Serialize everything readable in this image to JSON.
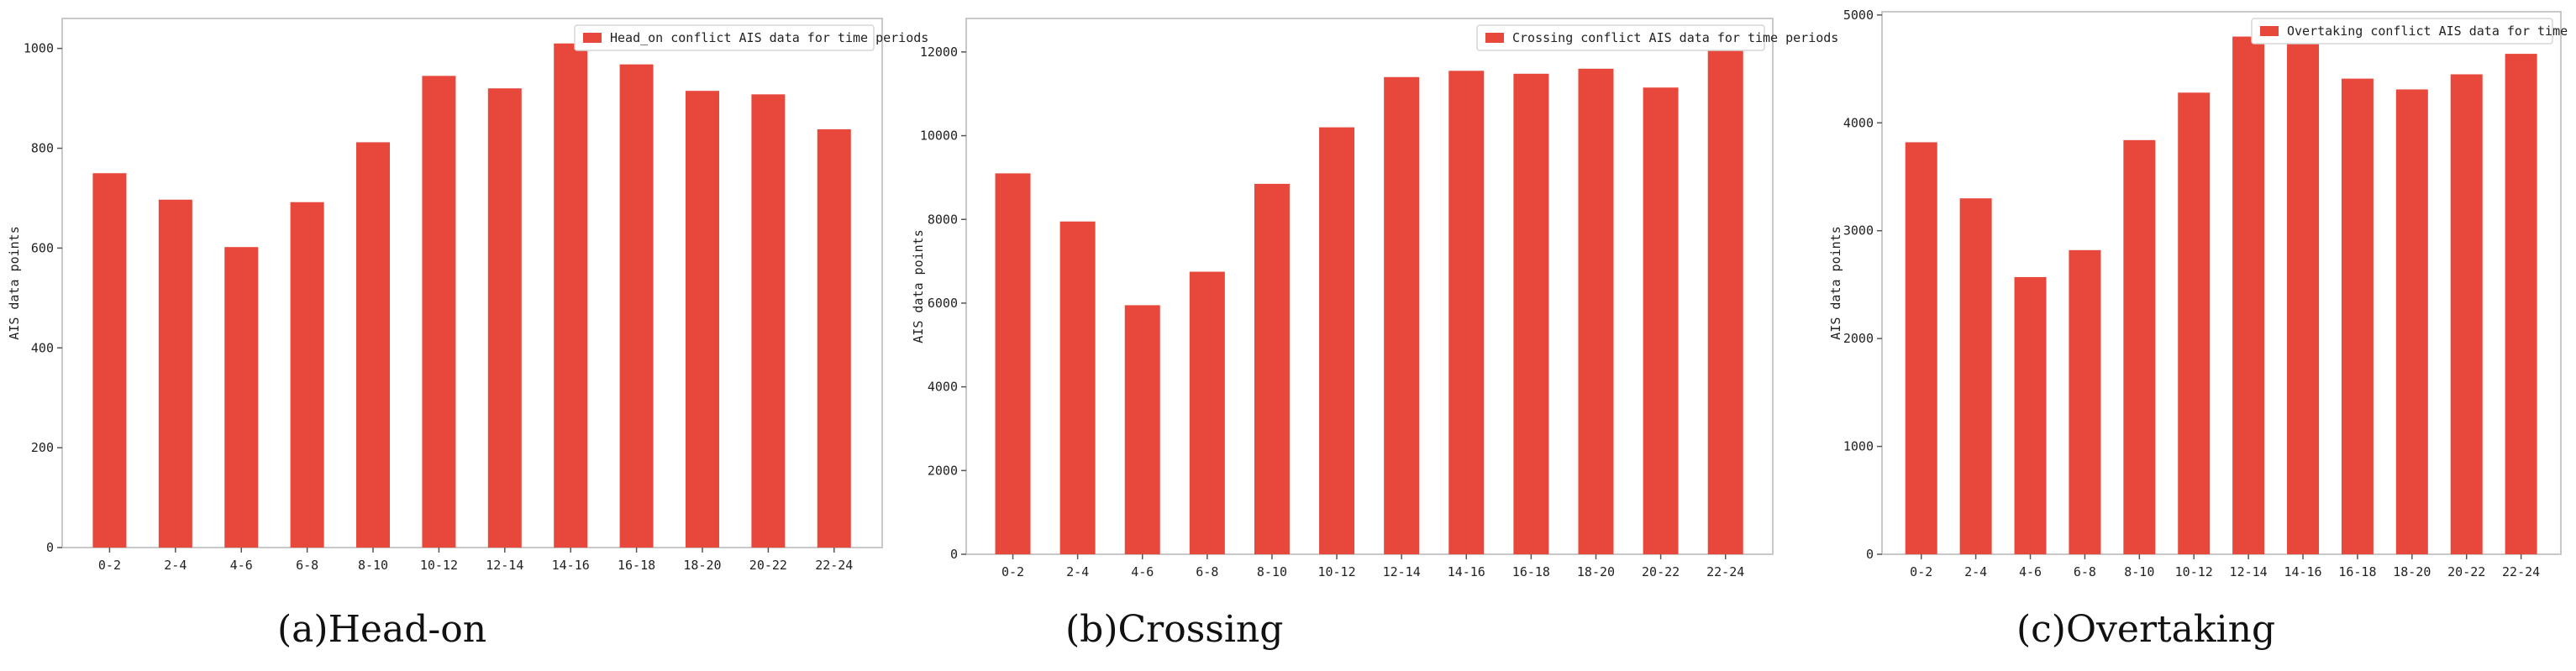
{
  "captions": [
    "(a)Head-on",
    "(b)Crossing",
    "(c)Overtaking"
  ],
  "colors": {
    "bar": "#e8483b",
    "axis": "#c8c8c8",
    "tick": "#555555"
  },
  "chart_data": [
    {
      "type": "bar",
      "title": "",
      "xlabel": "",
      "ylabel": "AIS data points",
      "legend": "Head_on conflict AIS data for time periods",
      "legend_position": "top-right",
      "grid": false,
      "categories": [
        "0-2",
        "2-4",
        "4-6",
        "6-8",
        "8-10",
        "10-12",
        "12-14",
        "14-16",
        "16-18",
        "18-20",
        "20-22",
        "22-24"
      ],
      "values": [
        750,
        697,
        602,
        692,
        812,
        945,
        920,
        1010,
        968,
        915,
        908,
        838
      ],
      "ylim": [
        0,
        1060
      ],
      "yticks": [
        0,
        200,
        400,
        600,
        800,
        1000
      ]
    },
    {
      "type": "bar",
      "title": "",
      "xlabel": "",
      "ylabel": "AIS data points",
      "legend": "Crossing conflict AIS data for time periods",
      "legend_position": "top-right",
      "grid": false,
      "categories": [
        "0-2",
        "2-4",
        "4-6",
        "6-8",
        "8-10",
        "10-12",
        "12-14",
        "14-16",
        "16-18",
        "18-20",
        "20-22",
        "22-24"
      ],
      "values": [
        9100,
        7950,
        5950,
        6750,
        8850,
        10200,
        11400,
        11550,
        11480,
        11600,
        11150,
        12200
      ],
      "ylim": [
        0,
        12800
      ],
      "yticks": [
        0,
        2000,
        4000,
        6000,
        8000,
        10000,
        12000
      ]
    },
    {
      "type": "bar",
      "title": "",
      "xlabel": "",
      "ylabel": "AIS data points",
      "legend": "Overtaking conflict AIS data for time periods",
      "legend_position": "top-right",
      "grid": false,
      "categories": [
        "0-2",
        "2-4",
        "4-6",
        "6-8",
        "8-10",
        "10-12",
        "12-14",
        "14-16",
        "16-18",
        "18-20",
        "20-22",
        "22-24"
      ],
      "values": [
        3820,
        3300,
        2570,
        2820,
        3840,
        4280,
        4800,
        4740,
        4410,
        4310,
        4450,
        4640
      ],
      "ylim": [
        0,
        5030
      ],
      "yticks": [
        0,
        1000,
        2000,
        3000,
        4000,
        5000
      ]
    }
  ]
}
